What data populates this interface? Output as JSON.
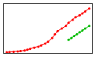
{
  "chart_data": {
    "type": "line",
    "series": [
      {
        "color": "#ff0000",
        "x": [
          1950,
          1952,
          1955,
          1958,
          1960,
          1963,
          1965,
          1967,
          1970,
          1973,
          1975,
          1978,
          1980,
          1983,
          1985,
          1987,
          1990,
          1993,
          1995,
          1998,
          2000,
          2003,
          2005,
          2007,
          2010
        ],
        "values": [
          0.2,
          0.25,
          0.32,
          0.42,
          0.55,
          0.7,
          0.9,
          1.1,
          1.4,
          1.7,
          2.0,
          2.5,
          3.0,
          4.0,
          5.0,
          5.8,
          6.5,
          7.2,
          8.0,
          8.8,
          9.5,
          10.0,
          10.5,
          11.0,
          11.8
        ]
      },
      {
        "color": "#00bb00",
        "x": [
          1995,
          1997,
          1999,
          2001,
          2003,
          2005,
          2007,
          2010
        ],
        "values": [
          3.5,
          4.0,
          4.5,
          5.0,
          5.5,
          6.0,
          6.5,
          7.2
        ]
      }
    ],
    "marker": "circle",
    "xlim": [
      1948,
      2012
    ],
    "ylim": [
      0,
      13
    ],
    "grid": false,
    "tick_labels": false
  }
}
